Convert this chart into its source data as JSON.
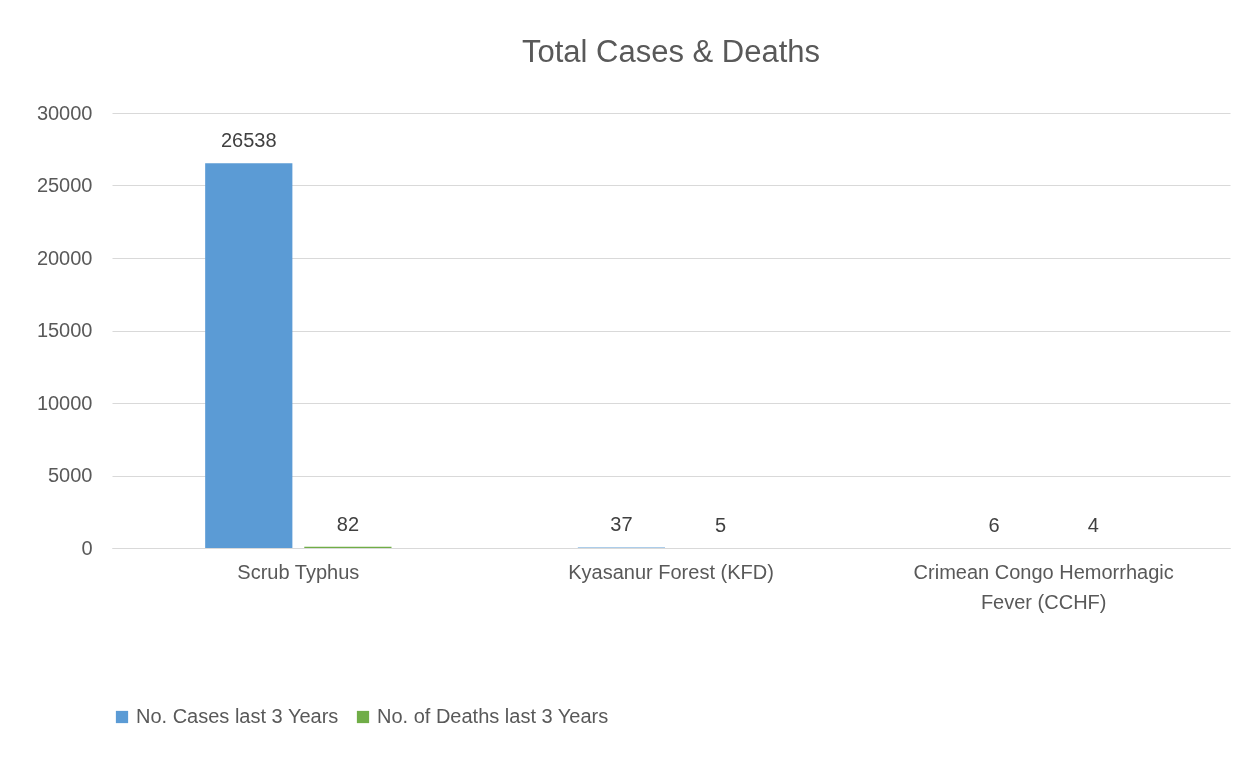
{
  "chart_data": {
    "type": "bar",
    "title": "Total Cases & Deaths",
    "categories": [
      "Scrub Typhus",
      "Kyasanur Forest (KFD)",
      "Crimean Congo Hemorrhagic Fever (CCHF)"
    ],
    "series": [
      {
        "name": "No. Cases last 3 Years",
        "color": "#5b9bd5",
        "values": [
          26538,
          37,
          6
        ]
      },
      {
        "name": "No. of Deaths last 3 Years",
        "color": "#70ad47",
        "values": [
          82,
          5,
          4
        ]
      }
    ],
    "ylim": [
      0,
      30000
    ],
    "yticks": [
      0,
      5000,
      10000,
      15000,
      20000,
      25000,
      30000
    ],
    "grid": "y",
    "legend": "bottom",
    "data_labels": true
  }
}
